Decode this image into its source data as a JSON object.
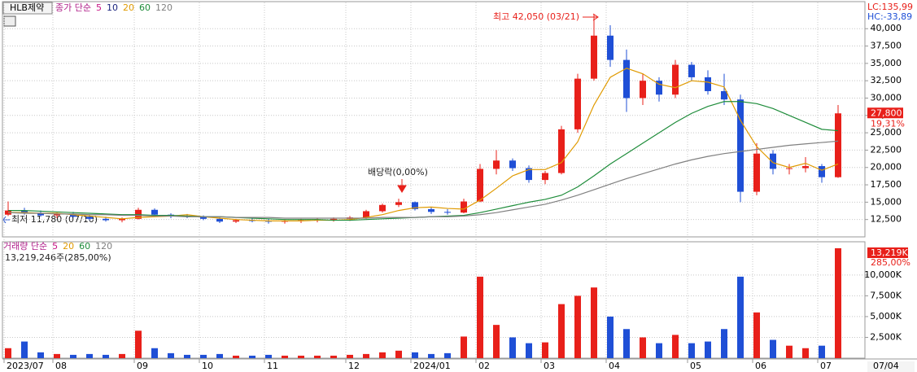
{
  "chart_data": [
    {
      "type": "candlestick",
      "symbol": "HLB제약",
      "legend": [
        {
          "label": "종가 단순",
          "color": "#b0208a"
        },
        {
          "label": "5",
          "color": "#c71585"
        },
        {
          "label": "10",
          "color": "#1a237e"
        },
        {
          "label": "20",
          "color": "#e09a00"
        },
        {
          "label": "60",
          "color": "#1e8c3a"
        },
        {
          "label": "120",
          "color": "#808080"
        }
      ],
      "categories": [
        "2023/07",
        null,
        null,
        "08",
        null,
        null,
        null,
        null,
        "09",
        null,
        null,
        null,
        "10",
        null,
        null,
        null,
        "11",
        null,
        null,
        null,
        null,
        "12",
        null,
        null,
        null,
        "2024/01",
        null,
        null,
        null,
        "02",
        null,
        null,
        null,
        "03",
        null,
        null,
        null,
        "04",
        null,
        null,
        null,
        null,
        "05",
        null,
        null,
        null,
        "06",
        null,
        null,
        null,
        "07",
        null
      ],
      "open": [
        13200,
        13800,
        13400,
        13100,
        13300,
        12900,
        12600,
        12400,
        12600,
        13900,
        13200,
        13000,
        12900,
        12600,
        12200,
        12400,
        12300,
        12200,
        12300,
        12400,
        12500,
        12600,
        12800,
        13700,
        14600,
        15000,
        14000,
        13600,
        13500,
        15100,
        19800,
        21000,
        19900,
        18200,
        19200,
        25500,
        32800,
        39000,
        35500,
        30000,
        32500,
        30500,
        34800,
        33000,
        31000,
        29800,
        16500,
        22000,
        19800,
        19900,
        20200,
        18600
      ],
      "high": [
        15100,
        14200,
        13800,
        13500,
        13600,
        13200,
        12900,
        12800,
        14200,
        14100,
        13400,
        13300,
        13100,
        12800,
        12600,
        12700,
        12600,
        12500,
        12600,
        12700,
        12800,
        13000,
        13900,
        14800,
        15500,
        15100,
        14300,
        14000,
        15500,
        20500,
        22500,
        21300,
        20300,
        19500,
        26000,
        33500,
        42050,
        40500,
        37000,
        33500,
        33000,
        35500,
        35200,
        34000,
        33500,
        30500,
        23500,
        22500,
        20500,
        21500,
        20500,
        29000
      ],
      "low": [
        13000,
        13200,
        12900,
        12700,
        12800,
        12400,
        12200,
        12100,
        12500,
        13000,
        12700,
        12700,
        12400,
        12000,
        12000,
        12100,
        11900,
        11900,
        12000,
        12100,
        12200,
        12300,
        12600,
        13500,
        14300,
        13800,
        13300,
        13200,
        13400,
        15000,
        19000,
        19500,
        17800,
        17600,
        19000,
        25000,
        32500,
        34500,
        28000,
        29000,
        29500,
        30000,
        32500,
        30500,
        29000,
        15000,
        16000,
        19000,
        19000,
        19300,
        17800,
        18500
      ],
      "close": [
        13800,
        13400,
        13100,
        13300,
        12900,
        12600,
        12400,
        12600,
        13900,
        13200,
        13000,
        12900,
        12600,
        12200,
        12400,
        12300,
        12200,
        12300,
        12400,
        12500,
        12600,
        12800,
        13700,
        14600,
        15000,
        14000,
        13600,
        13500,
        15100,
        19800,
        21000,
        19900,
        18200,
        19200,
        25500,
        32800,
        39000,
        35500,
        30000,
        32500,
        30500,
        34800,
        33000,
        31000,
        29800,
        16500,
        22000,
        19800,
        19900,
        20200,
        18600,
        27800
      ],
      "series": [
        {
          "color": "#e09a00",
          "values": [
            13500,
            13500,
            13400,
            13400,
            13200,
            13000,
            12800,
            12600,
            12800,
            12900,
            13000,
            13200,
            12900,
            12700,
            12500,
            12400,
            12300,
            12300,
            12300,
            12400,
            12400,
            12500,
            12800,
            13200,
            13800,
            14200,
            14300,
            14100,
            14000,
            15300,
            17000,
            18800,
            19700,
            19700,
            20700,
            23700,
            29000,
            33000,
            34300,
            33500,
            32000,
            31500,
            32500,
            32300,
            31600,
            26800,
            23000,
            20700,
            20000,
            20600,
            19600,
            20500
          ]
        },
        {
          "color": "#1e8c3a",
          "values": [
            13800,
            13800,
            13700,
            13600,
            13500,
            13400,
            13300,
            13200,
            13200,
            13100,
            13100,
            13000,
            12900,
            12900,
            12800,
            12700,
            12600,
            12500,
            12500,
            12500,
            12400,
            12400,
            12500,
            12600,
            12700,
            12800,
            12900,
            13000,
            13100,
            13500,
            14000,
            14500,
            15000,
            15400,
            16000,
            17200,
            18800,
            20500,
            22000,
            23500,
            25000,
            26500,
            27800,
            28800,
            29500,
            29500,
            29200,
            28500,
            27500,
            26500,
            25500,
            25300
          ]
        },
        {
          "color": "#808080",
          "values": [
            13500,
            13400,
            13400,
            13300,
            13300,
            13200,
            13200,
            13100,
            13100,
            13000,
            13000,
            12900,
            12900,
            12900,
            12800,
            12800,
            12800,
            12700,
            12700,
            12700,
            12700,
            12700,
            12700,
            12800,
            12800,
            12800,
            12900,
            12900,
            13000,
            13200,
            13500,
            13900,
            14300,
            14700,
            15300,
            16000,
            16800,
            17600,
            18400,
            19100,
            19800,
            20500,
            21100,
            21600,
            22000,
            22300,
            22600,
            22900,
            23200,
            23400,
            23600,
            23800
          ]
        }
      ],
      "ylim": [
        10000,
        43900
      ],
      "yticks": [
        {
          "value": 12500,
          "label": "12,500"
        },
        {
          "value": 15000,
          "label": "15,000"
        },
        {
          "value": 17500,
          "label": "17,500"
        },
        {
          "value": 20000,
          "label": "20,000"
        },
        {
          "value": 22500,
          "label": "22,500"
        },
        {
          "value": 25000,
          "label": "25,000"
        },
        {
          "value": 27500,
          "label": "27,500"
        },
        {
          "value": 30000,
          "label": "30,000"
        },
        {
          "value": 32500,
          "label": "32,500"
        },
        {
          "value": 35000,
          "label": "35,000"
        },
        {
          "value": 37500,
          "label": "37,500"
        },
        {
          "value": 40000,
          "label": "40,000"
        }
      ],
      "up_color": "#e8201a",
      "down_color": "#1f4fd6",
      "last_price_label": "27,800",
      "change_label": "19,31%",
      "lc_label": "LC:135,99",
      "hc_label": "HC:-33,89",
      "annotations": [
        "최고 42,050 (03/21)",
        "배당락(0,00%)",
        "최저 11,780 (07/10)"
      ],
      "last_date": "07/04"
    },
    {
      "type": "bar",
      "legend": [
        {
          "label": "거래량 단순",
          "color": "#b0208a"
        },
        {
          "label": "5",
          "color": "#c71585"
        },
        {
          "label": "20",
          "color": "#e09a00"
        },
        {
          "label": "60",
          "color": "#1e8c3a"
        },
        {
          "label": "120",
          "color": "#808080"
        }
      ],
      "summary": "13,219,246주(285,00%)",
      "values": [
        1200,
        2000,
        700,
        500,
        400,
        500,
        400,
        500,
        3300,
        1200,
        600,
        400,
        400,
        500,
        300,
        300,
        400,
        300,
        300,
        300,
        300,
        400,
        500,
        700,
        900,
        700,
        500,
        600,
        2600,
        9800,
        4000,
        2500,
        1800,
        1900,
        6500,
        7500,
        8500,
        5000,
        3500,
        2500,
        1800,
        2800,
        1800,
        2000,
        3500,
        9800,
        5500,
        2200,
        1500,
        1200,
        1500,
        13219
      ],
      "ylim": [
        0,
        14000
      ],
      "yticks": [
        {
          "value": 2500,
          "label": "2,500K"
        },
        {
          "value": 5000,
          "label": "5,000K"
        },
        {
          "value": 7500,
          "label": "7,500K"
        },
        {
          "value": 10000,
          "label": "10,000K"
        }
      ],
      "last_value_label": "13,219K",
      "change_label": "285,00%"
    }
  ]
}
